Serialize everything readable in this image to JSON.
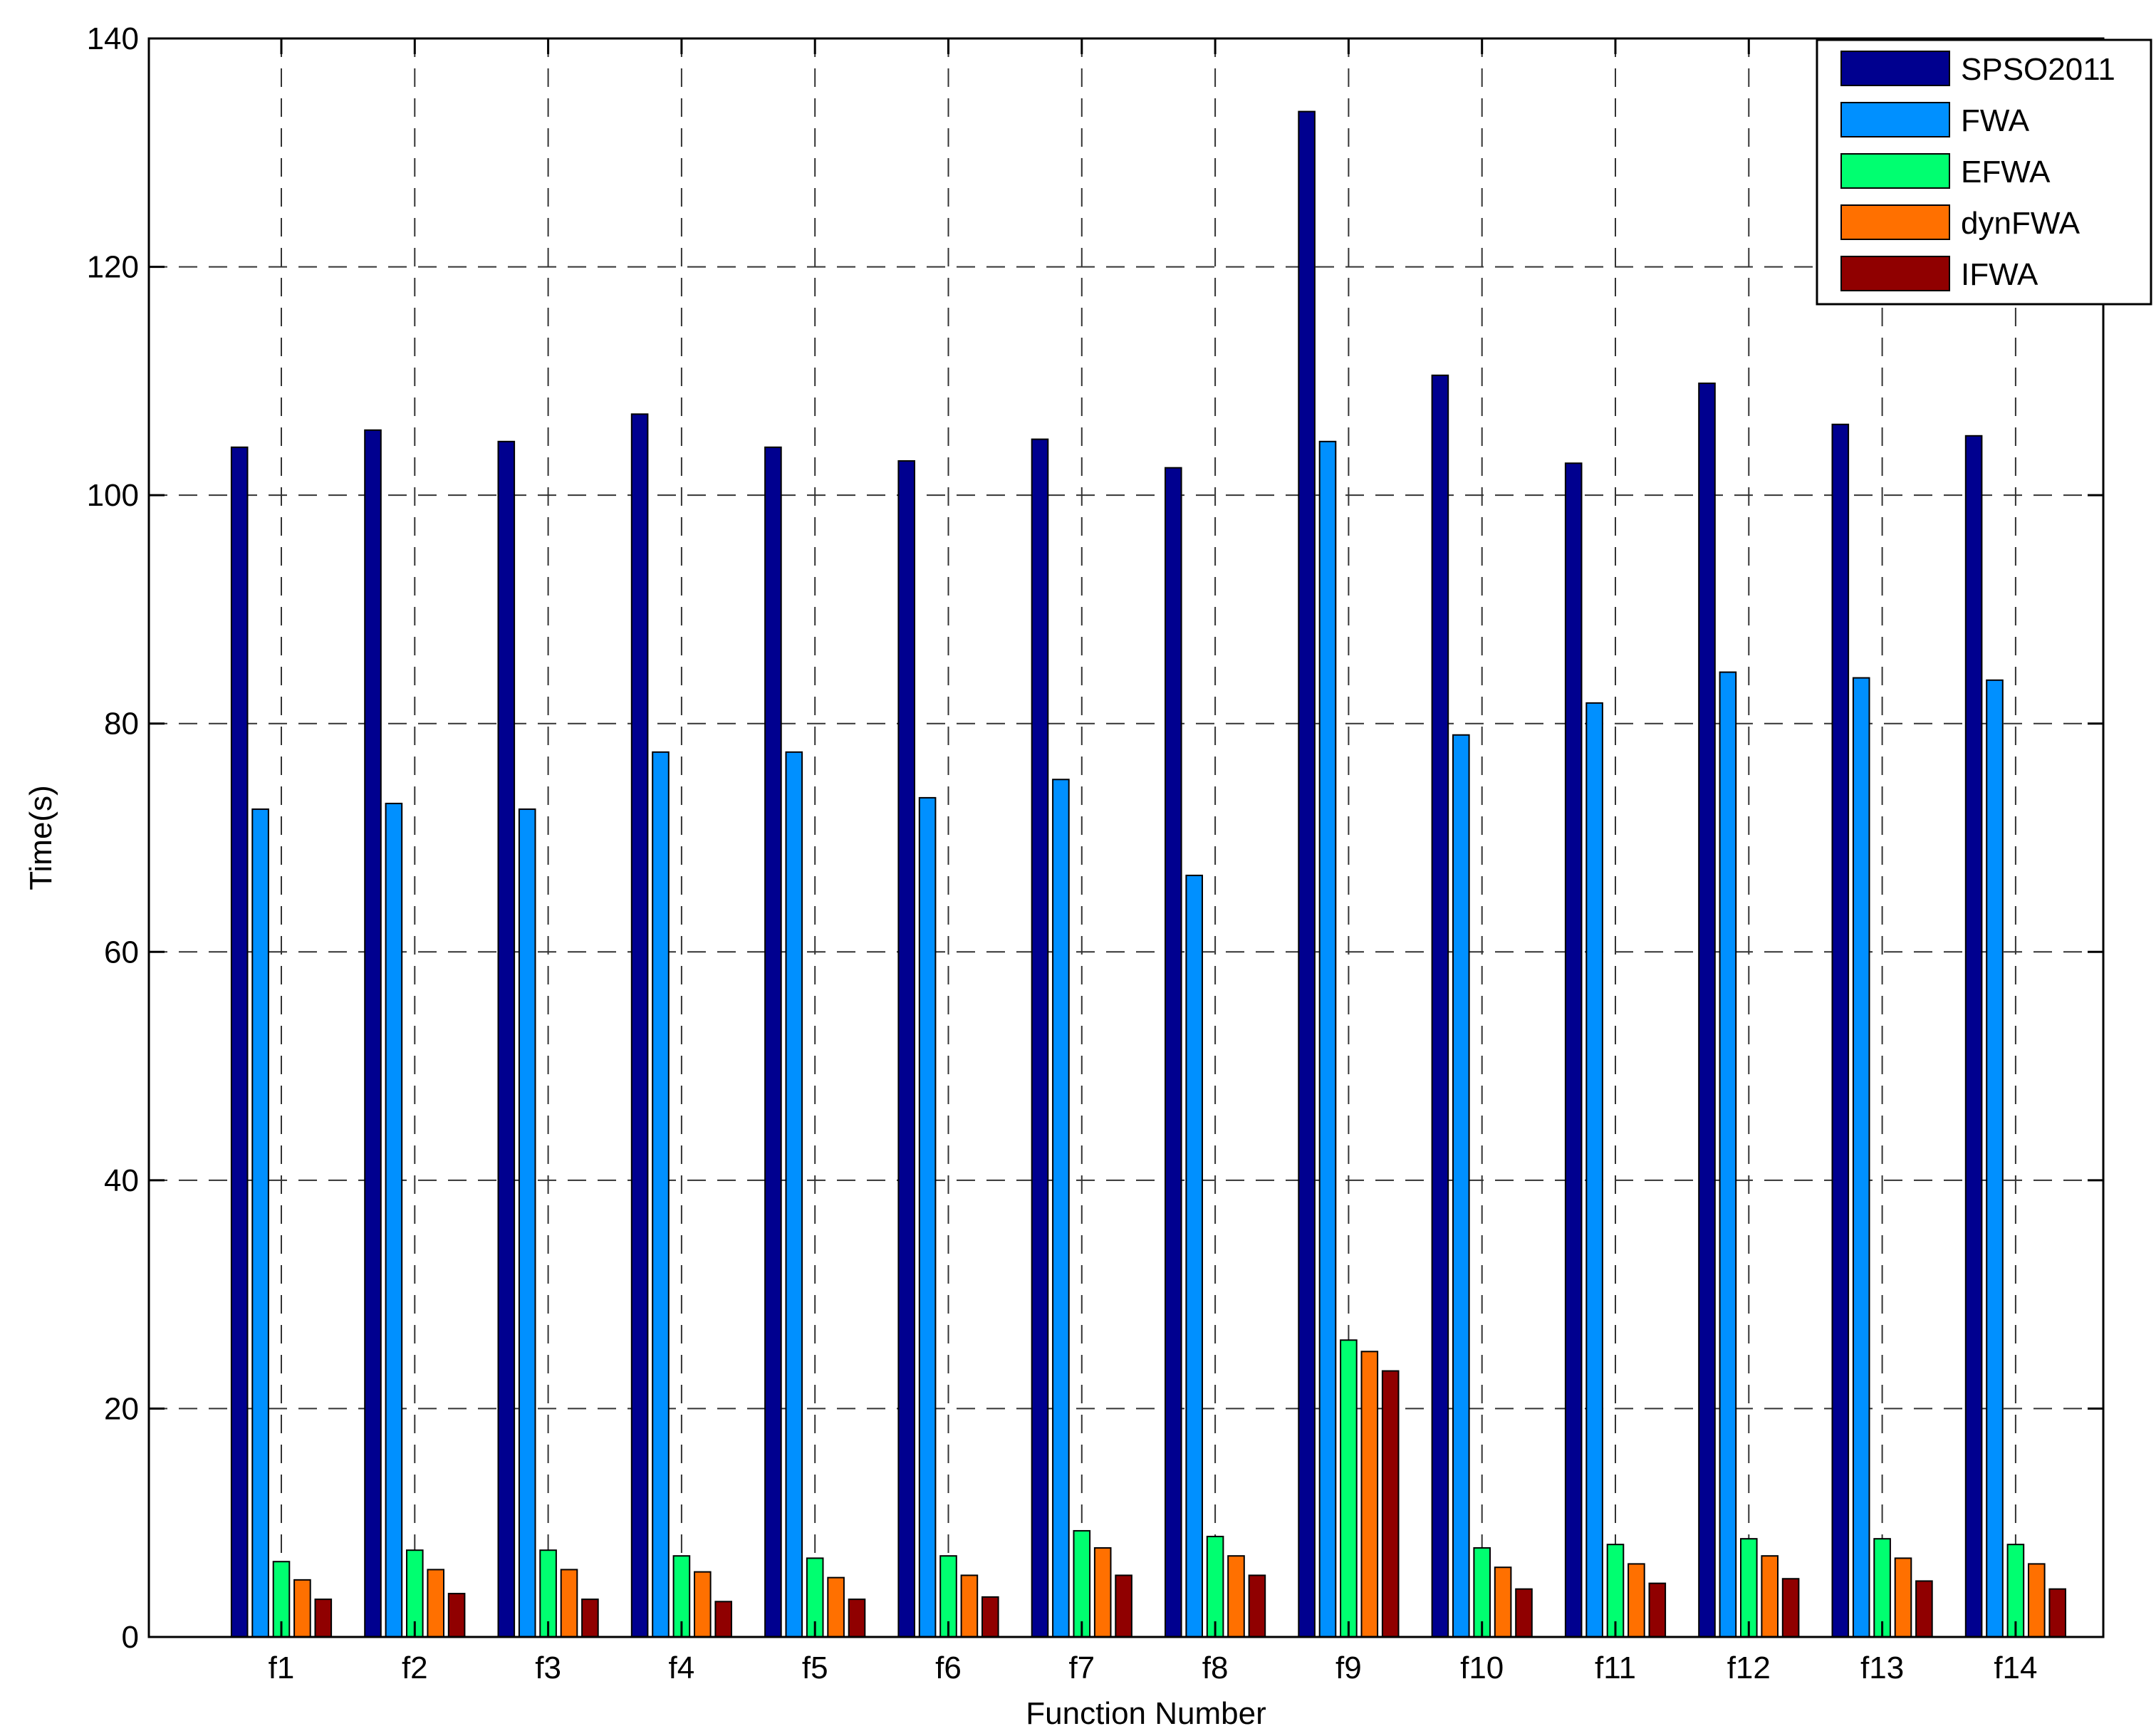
{
  "chart_data": {
    "type": "bar",
    "title": "",
    "xlabel": "Function Number",
    "ylabel": "Time(s)",
    "ylim": [
      0,
      140
    ],
    "yticks": [
      0,
      20,
      40,
      60,
      80,
      100,
      120,
      140
    ],
    "grid": true,
    "legend_position": "top-right",
    "categories": [
      "f1",
      "f2",
      "f3",
      "f4",
      "f5",
      "f6",
      "f7",
      "f8",
      "f9",
      "f10",
      "f11",
      "f12",
      "f13",
      "f14"
    ],
    "series": [
      {
        "name": "SPSO2011",
        "color": "#00008F",
        "values": [
          104.2,
          105.7,
          104.7,
          107.1,
          104.2,
          103.0,
          104.9,
          102.4,
          133.6,
          110.5,
          102.8,
          109.8,
          106.2,
          105.2
        ]
      },
      {
        "name": "FWA",
        "color": "#0090FF",
        "values": [
          72.5,
          73.0,
          72.5,
          77.5,
          77.5,
          73.5,
          75.1,
          66.7,
          104.7,
          79.0,
          81.8,
          84.5,
          84.0,
          83.8
        ]
      },
      {
        "name": "EFWA",
        "color": "#00FF70",
        "values": [
          6.6,
          7.6,
          7.6,
          7.1,
          6.9,
          7.1,
          9.3,
          8.8,
          26.0,
          7.8,
          8.1,
          8.6,
          8.6,
          8.1
        ]
      },
      {
        "name": "dynFWA",
        "color": "#FF7000",
        "values": [
          5.0,
          5.9,
          5.9,
          5.7,
          5.2,
          5.4,
          7.8,
          7.1,
          25.0,
          6.1,
          6.4,
          7.1,
          6.9,
          6.4
        ]
      },
      {
        "name": "IFWA",
        "color": "#900000",
        "values": [
          3.3,
          3.8,
          3.3,
          3.1,
          3.3,
          3.5,
          5.4,
          5.4,
          23.3,
          4.2,
          4.7,
          5.1,
          4.9,
          4.2
        ]
      }
    ]
  }
}
